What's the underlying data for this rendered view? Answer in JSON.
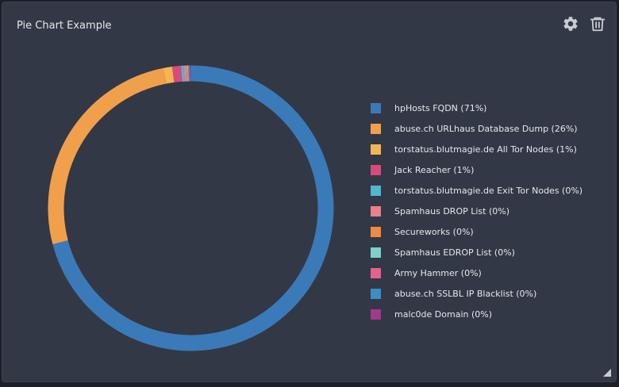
{
  "widget": {
    "title": "Pie Chart Example",
    "icons": [
      "gear-icon",
      "trash-icon",
      "resize-handle-icon"
    ]
  },
  "colors": {
    "background": "#323845",
    "text": "#e6e8ec",
    "icon": "#c9ccd2"
  },
  "chart_data": {
    "type": "pie",
    "variant": "donut",
    "title": "",
    "legend": "right",
    "series": [
      {
        "label": "hpHosts FQDN (71%)",
        "value": 71,
        "color": "#3b7ab8"
      },
      {
        "label": "abuse.ch URLhaus Database Dump (26%)",
        "value": 26,
        "color": "#f0a04b"
      },
      {
        "label": "torstatus.blutmagie.de All Tor Nodes (1%)",
        "value": 1,
        "color": "#f5b554"
      },
      {
        "label": "Jack Reacher (1%)",
        "value": 1,
        "color": "#d94a7c"
      },
      {
        "label": "torstatus.blutmagie.de Exit Tor Nodes (0%)",
        "value": 0.3,
        "color": "#4fb7cf"
      },
      {
        "label": "Spamhaus DROP List (0%)",
        "value": 0.3,
        "color": "#e8808f"
      },
      {
        "label": "Secureworks (0%)",
        "value": 0.1,
        "color": "#ef8b3e"
      },
      {
        "label": "Spamhaus EDROP List (0%)",
        "value": 0.1,
        "color": "#7fcfca"
      },
      {
        "label": "Army Hammer (0%)",
        "value": 0.1,
        "color": "#e4638a"
      },
      {
        "label": "abuse.ch SSLBL IP Blacklist (0%)",
        "value": 0.1,
        "color": "#3a8fc4"
      },
      {
        "label": "malc0de Domain (0%)",
        "value": 0.1,
        "color": "#a3388e"
      }
    ]
  }
}
